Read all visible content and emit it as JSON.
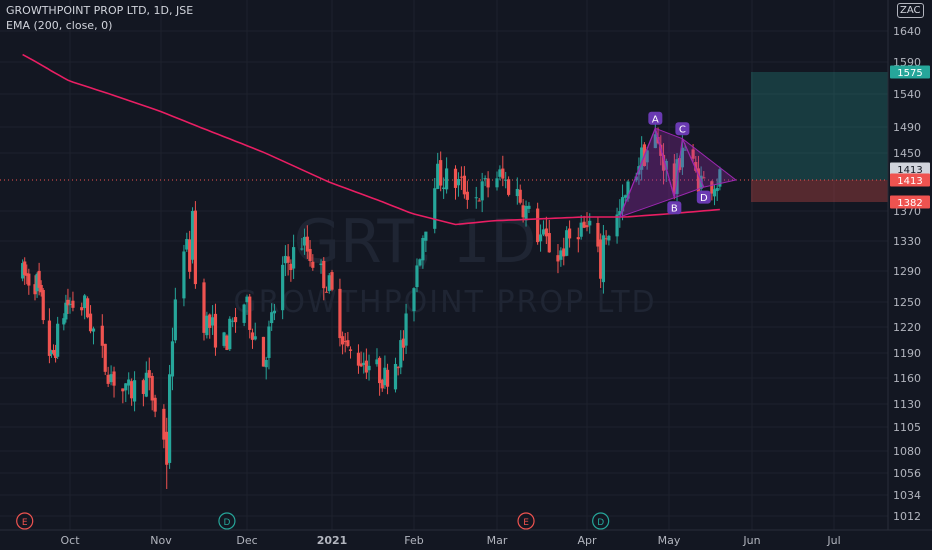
{
  "legend": {
    "title": "GROWTHPOINT PROP LTD, 1D, JSE",
    "indicator": "EMA (200, close, 0)"
  },
  "currency": "ZAC",
  "watermark": {
    "symbol": "GRT, 1D",
    "name": "GROWTHPOINT PROP LTD"
  },
  "colors": {
    "background": "#131722",
    "up": "#26a69a",
    "down": "#ef5350",
    "ema": "#e91e63",
    "pattern": "#9c27b0",
    "axis_text": "#b2b5be",
    "profit_zone": "#26a69a",
    "loss_zone": "#ef5350"
  },
  "chart_data": {
    "type": "candlestick",
    "y_axis_ticks": [
      1640,
      1590,
      1540,
      1490,
      1450,
      1413,
      1370,
      1330,
      1290,
      1250,
      1220,
      1190,
      1160,
      1130,
      1105,
      1080,
      1056,
      1034,
      1012
    ],
    "x_axis_labels": [
      "Oct",
      "Nov",
      "Dec",
      "2021",
      "Feb",
      "Mar",
      "Apr",
      "May",
      "Jun",
      "Jul"
    ],
    "price_labels": [
      {
        "value": "1575",
        "role": "take-profit"
      },
      {
        "value": "1413",
        "role": "last-price"
      },
      {
        "value": "1413",
        "role": "entry"
      },
      {
        "value": "1382",
        "role": "stop-loss"
      }
    ],
    "pattern": {
      "points": [
        {
          "label": "A",
          "date": "2021-04-26",
          "price": 1488
        },
        {
          "label": "B",
          "date": "2021-05-03",
          "price": 1388
        },
        {
          "label": "C",
          "date": "2021-05-06",
          "price": 1472
        },
        {
          "label": "D",
          "date": "2021-05-14",
          "price": 1403
        }
      ],
      "start": {
        "date": "2021-04-13",
        "price": 1362
      },
      "apex": {
        "date": "2021-05-26",
        "price": 1413
      }
    },
    "position": {
      "entry": 1413,
      "take_profit": 1575,
      "stop_loss": 1382,
      "end_date": "2021-07-30"
    },
    "events": [
      {
        "label": "E",
        "date": "2020-09-09"
      },
      {
        "label": "D",
        "date": "2020-11-24"
      },
      {
        "label": "E",
        "date": "2021-03-11"
      },
      {
        "label": "D",
        "date": "2021-04-06"
      }
    ],
    "ema_200": [
      [
        "2020-09-08",
        1602
      ],
      [
        "2020-09-30",
        1562
      ],
      [
        "2020-10-31",
        1515
      ],
      [
        "2020-11-30",
        1463
      ],
      [
        "2020-12-31",
        1410
      ],
      [
        "2021-01-31",
        1367
      ],
      [
        "2021-02-15",
        1352
      ],
      [
        "2021-02-28",
        1357
      ],
      [
        "2021-03-31",
        1362
      ],
      [
        "2021-04-15",
        1362
      ],
      [
        "2021-04-30",
        1366
      ],
      [
        "2021-05-20",
        1372
      ]
    ],
    "ohlc_keyframes": [
      [
        "2020-09-08",
        1285
      ],
      [
        "2020-09-15",
        1275
      ],
      [
        "2020-09-22",
        1180
      ],
      [
        "2020-09-29",
        1248
      ],
      [
        "2020-10-06",
        1245
      ],
      [
        "2020-10-13",
        1175
      ],
      [
        "2020-10-20",
        1140
      ],
      [
        "2020-10-27",
        1160
      ],
      [
        "2020-11-02",
        1090
      ],
      [
        "2020-11-05",
        1210
      ],
      [
        "2020-11-09",
        1330
      ],
      [
        "2020-11-16",
        1230
      ],
      [
        "2020-11-23",
        1200
      ],
      [
        "2020-11-30",
        1250
      ],
      [
        "2020-12-07",
        1180
      ],
      [
        "2020-12-14",
        1290
      ],
      [
        "2020-12-21",
        1330
      ],
      [
        "2020-12-31",
        1270
      ],
      [
        "2021-01-07",
        1190
      ],
      [
        "2021-01-14",
        1180
      ],
      [
        "2021-01-21",
        1160
      ],
      [
        "2021-01-28",
        1200
      ],
      [
        "2021-02-01",
        1280
      ],
      [
        "2021-02-08",
        1420
      ],
      [
        "2021-02-15",
        1410
      ],
      [
        "2021-02-22",
        1390
      ],
      [
        "2021-03-01",
        1420
      ],
      [
        "2021-03-08",
        1395
      ],
      [
        "2021-03-15",
        1340
      ],
      [
        "2021-03-22",
        1310
      ],
      [
        "2021-03-29",
        1350
      ],
      [
        "2021-04-06",
        1330
      ],
      [
        "2021-04-13",
        1365
      ],
      [
        "2021-04-20",
        1440
      ],
      [
        "2021-04-26",
        1470
      ],
      [
        "2021-05-03",
        1400
      ],
      [
        "2021-05-06",
        1465
      ],
      [
        "2021-05-11",
        1420
      ],
      [
        "2021-05-14",
        1408
      ],
      [
        "2021-05-20",
        1413
      ]
    ],
    "reference_candles": [
      [
        "2020-11-12",
        1305,
        1375,
        1300,
        1370
      ],
      [
        "2020-11-03",
        1100,
        1115,
        1040,
        1065
      ],
      [
        "2021-04-06",
        1332,
        1340,
        1268,
        1280
      ]
    ]
  }
}
